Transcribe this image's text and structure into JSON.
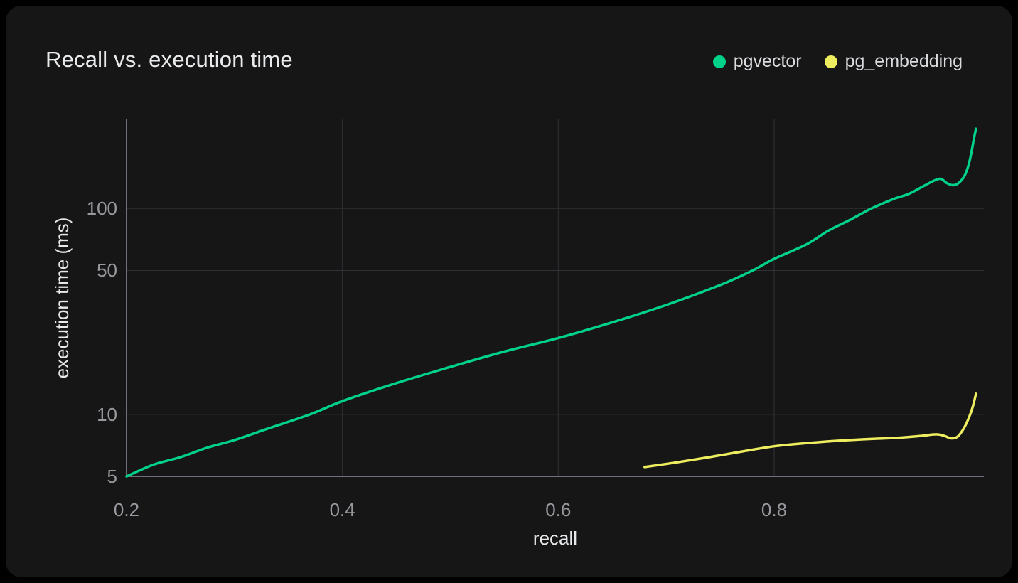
{
  "colors": {
    "background": "#000000",
    "card": "#161616",
    "grid": "#2f3136",
    "spine": "#6e7179",
    "tick_text": "#97999e",
    "axis_label_text": "#e6e8ea",
    "title_text": "#e8eaec",
    "legend_text": "#d9dbde",
    "pgvector": "#00d28a",
    "pg_embedding": "#eded5f"
  },
  "legend": {
    "items": [
      {
        "label": "pgvector",
        "dot_icon": "circle",
        "color": "#00d28a"
      },
      {
        "label": "pg_embedding",
        "dot_icon": "circle",
        "color": "#eded5f"
      }
    ]
  },
  "chart_data": {
    "type": "line",
    "title": "Recall vs. execution time",
    "xlabel": "recall",
    "ylabel": "execution time (ms)",
    "x_scale": "linear",
    "y_scale": "log",
    "xlim": [
      0.2,
      0.9943
    ],
    "ylim": [
      5,
      271
    ],
    "x_ticks": [
      0.2,
      0.4,
      0.6,
      0.8
    ],
    "x_tick_labels": [
      "0.2",
      "0.4",
      "0.6",
      "0.8"
    ],
    "y_ticks": [
      5,
      10,
      50,
      100
    ],
    "y_tick_labels": [
      "5",
      "10",
      "50",
      "100"
    ],
    "grid": true,
    "legend_position": "top-right",
    "series": [
      {
        "name": "pgvector",
        "color": "#00d28a",
        "points": [
          [
            0.2,
            5.0
          ],
          [
            0.225,
            5.7
          ],
          [
            0.25,
            6.2
          ],
          [
            0.275,
            6.9
          ],
          [
            0.3,
            7.5
          ],
          [
            0.33,
            8.5
          ],
          [
            0.37,
            10.0
          ],
          [
            0.4,
            11.6
          ],
          [
            0.45,
            14.2
          ],
          [
            0.5,
            17.0
          ],
          [
            0.55,
            20.2
          ],
          [
            0.6,
            23.5
          ],
          [
            0.65,
            28.0
          ],
          [
            0.7,
            34.0
          ],
          [
            0.75,
            42.5
          ],
          [
            0.78,
            50.0
          ],
          [
            0.8,
            57.0
          ],
          [
            0.83,
            67.0
          ],
          [
            0.85,
            78.0
          ],
          [
            0.87,
            88.0
          ],
          [
            0.89,
            100.0
          ],
          [
            0.91,
            111.0
          ],
          [
            0.925,
            118.0
          ],
          [
            0.94,
            130.0
          ],
          [
            0.95,
            138.0
          ],
          [
            0.955,
            139.0
          ],
          [
            0.96,
            133.0
          ],
          [
            0.965,
            130.0
          ],
          [
            0.97,
            132.0
          ],
          [
            0.976,
            143.0
          ],
          [
            0.98,
            162.0
          ],
          [
            0.983,
            190.0
          ],
          [
            0.985,
            218.0
          ],
          [
            0.987,
            244.0
          ]
        ]
      },
      {
        "name": "pg_embedding",
        "color": "#eded5f",
        "points": [
          [
            0.68,
            5.55
          ],
          [
            0.71,
            5.85
          ],
          [
            0.74,
            6.2
          ],
          [
            0.77,
            6.6
          ],
          [
            0.8,
            7.0
          ],
          [
            0.83,
            7.25
          ],
          [
            0.86,
            7.45
          ],
          [
            0.89,
            7.6
          ],
          [
            0.915,
            7.7
          ],
          [
            0.935,
            7.85
          ],
          [
            0.95,
            8.0
          ],
          [
            0.958,
            7.85
          ],
          [
            0.964,
            7.65
          ],
          [
            0.97,
            7.8
          ],
          [
            0.976,
            8.6
          ],
          [
            0.981,
            9.8
          ],
          [
            0.984,
            10.9
          ],
          [
            0.987,
            12.6
          ]
        ]
      }
    ]
  }
}
